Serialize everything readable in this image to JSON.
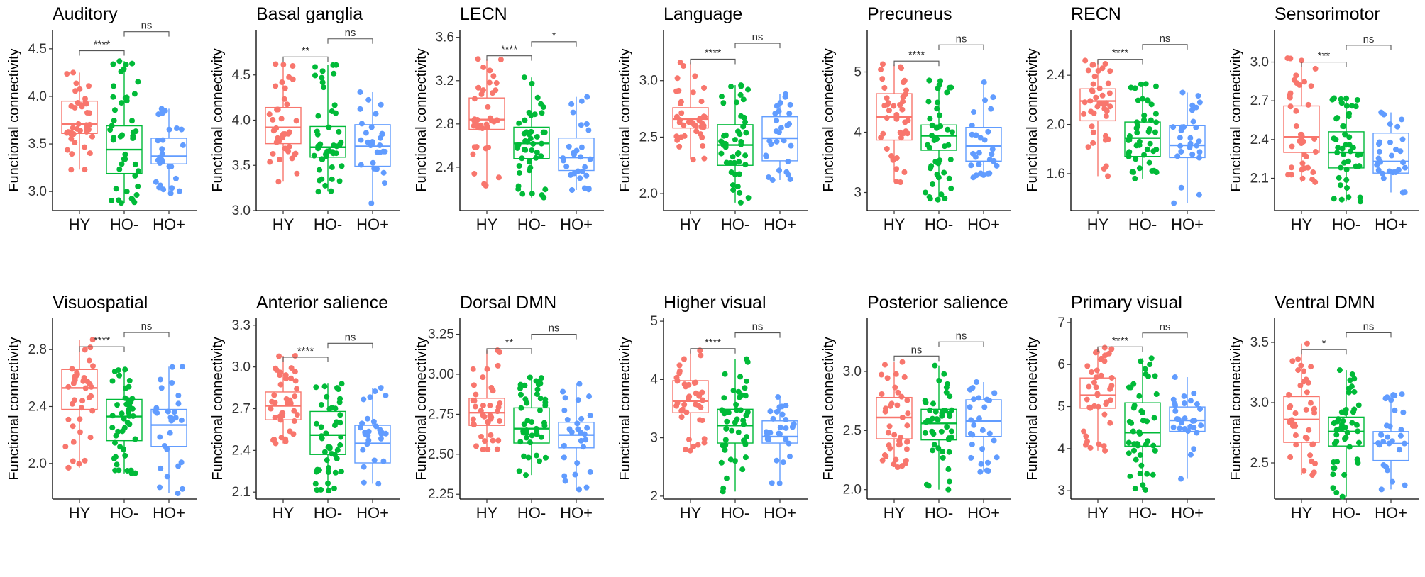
{
  "chart_data": [
    {
      "type": "box",
      "title": "Auditory",
      "ylabel": "Functional connectivity",
      "categories": [
        "HY",
        "HO-",
        "HO+"
      ],
      "ylim": [
        2.8,
        4.7
      ],
      "yticks": [
        "3.0",
        "3.5",
        "4.0",
        "4.5"
      ],
      "boxes": [
        {
          "name": "HY",
          "whislo": 3.23,
          "q1": 3.61,
          "med": 3.71,
          "q3": 3.95,
          "whishi": 4.25
        },
        {
          "name": "HO-",
          "whislo": 2.88,
          "q1": 3.19,
          "med": 3.44,
          "q3": 3.69,
          "whishi": 4.37
        },
        {
          "name": "HO+",
          "whislo": 2.98,
          "q1": 3.29,
          "med": 3.37,
          "q3": 3.56,
          "whishi": 3.87
        }
      ],
      "comparisons": [
        {
          "label": "****",
          "from": "HY",
          "to": "HO-",
          "y": 4.48
        },
        {
          "label": "ns",
          "from": "HO-",
          "to": "HO+",
          "y": 4.68
        }
      ]
    },
    {
      "type": "box",
      "title": "Basal ganglia",
      "ylabel": "Functional connectivity",
      "categories": [
        "HY",
        "HO-",
        "HO+"
      ],
      "ylim": [
        3.0,
        5.0
      ],
      "yticks": [
        "3.0",
        "3.5",
        "4.0",
        "4.5"
      ],
      "boxes": [
        {
          "name": "HY",
          "whislo": 3.32,
          "q1": 3.74,
          "med": 3.92,
          "q3": 4.14,
          "whishi": 4.62
        },
        {
          "name": "HO-",
          "whislo": 3.21,
          "q1": 3.59,
          "med": 3.7,
          "q3": 3.93,
          "whishi": 4.61
        },
        {
          "name": "HO+",
          "whislo": 3.08,
          "q1": 3.49,
          "med": 3.71,
          "q3": 3.95,
          "whishi": 4.31
        }
      ],
      "comparisons": [
        {
          "label": "**",
          "from": "HY",
          "to": "HO-",
          "y": 4.7
        },
        {
          "label": "ns",
          "from": "HO-",
          "to": "HO+",
          "y": 4.9
        }
      ]
    },
    {
      "type": "box",
      "title": "LECN",
      "ylabel": "Functional connectivity",
      "categories": [
        "HY",
        "HO-",
        "HO+"
      ],
      "ylim": [
        2.0,
        3.67
      ],
      "yticks": [
        "2.4",
        "2.8",
        "3.2",
        "3.6"
      ],
      "boxes": [
        {
          "name": "HY",
          "whislo": 2.23,
          "q1": 2.75,
          "med": 2.84,
          "q3": 3.04,
          "whishi": 3.4
        },
        {
          "name": "HO-",
          "whislo": 2.12,
          "q1": 2.48,
          "med": 2.62,
          "q3": 2.77,
          "whishi": 3.23
        },
        {
          "name": "HO+",
          "whislo": 2.19,
          "q1": 2.37,
          "med": 2.49,
          "q3": 2.67,
          "whishi": 3.05
        }
      ],
      "comparisons": [
        {
          "label": "****",
          "from": "HY",
          "to": "HO-",
          "y": 3.43
        },
        {
          "label": "*",
          "from": "HO-",
          "to": "HO+",
          "y": 3.56
        }
      ]
    },
    {
      "type": "box",
      "title": "Language",
      "ylabel": "Functional connectivity",
      "categories": [
        "HY",
        "HO-",
        "HO+"
      ],
      "ylim": [
        1.85,
        3.45
      ],
      "yticks": [
        "2.0",
        "2.5",
        "3.0"
      ],
      "boxes": [
        {
          "name": "HY",
          "whislo": 2.3,
          "q1": 2.58,
          "med": 2.66,
          "q3": 2.76,
          "whishi": 3.16
        },
        {
          "name": "HO-",
          "whislo": 1.92,
          "q1": 2.25,
          "med": 2.43,
          "q3": 2.61,
          "whishi": 2.96
        },
        {
          "name": "HO+",
          "whislo": 2.12,
          "q1": 2.29,
          "med": 2.49,
          "q3": 2.68,
          "whishi": 2.88
        }
      ],
      "comparisons": [
        {
          "label": "****",
          "from": "HY",
          "to": "HO-",
          "y": 3.19
        },
        {
          "label": "ns",
          "from": "HO-",
          "to": "HO+",
          "y": 3.33
        }
      ]
    },
    {
      "type": "box",
      "title": "Precuneus",
      "ylabel": "Functional connectivity",
      "categories": [
        "HY",
        "HO-",
        "HO+"
      ],
      "ylim": [
        2.7,
        5.7
      ],
      "yticks": [
        "3",
        "4",
        "5"
      ],
      "boxes": [
        {
          "name": "HY",
          "whislo": 3.17,
          "q1": 3.87,
          "med": 4.25,
          "q3": 4.64,
          "whishi": 5.13
        },
        {
          "name": "HO-",
          "whislo": 2.88,
          "q1": 3.7,
          "med": 3.94,
          "q3": 4.12,
          "whishi": 4.86
        },
        {
          "name": "HO+",
          "whislo": 3.25,
          "q1": 3.52,
          "med": 3.77,
          "q3": 4.08,
          "whishi": 4.83
        }
      ],
      "comparisons": [
        {
          "label": "****",
          "from": "HY",
          "to": "HO-",
          "y": 5.18
        },
        {
          "label": "ns",
          "from": "HO-",
          "to": "HO+",
          "y": 5.45
        }
      ]
    },
    {
      "type": "box",
      "title": "RECN",
      "ylabel": "Functional connectivity",
      "categories": [
        "HY",
        "HO-",
        "HO+"
      ],
      "ylim": [
        1.3,
        2.77
      ],
      "yticks": [
        "1.6",
        "2.0",
        "2.4"
      ],
      "boxes": [
        {
          "name": "HY",
          "whislo": 1.58,
          "q1": 2.03,
          "med": 2.19,
          "q3": 2.29,
          "whishi": 2.52
        },
        {
          "name": "HO-",
          "whislo": 1.56,
          "q1": 1.74,
          "med": 1.89,
          "q3": 2.02,
          "whishi": 2.33
        },
        {
          "name": "HO+",
          "whislo": 1.36,
          "q1": 1.73,
          "med": 1.83,
          "q3": 1.99,
          "whishi": 2.26
        }
      ],
      "comparisons": [
        {
          "label": "****",
          "from": "HY",
          "to": "HO-",
          "y": 2.53
        },
        {
          "label": "ns",
          "from": "HO-",
          "to": "HO+",
          "y": 2.65
        }
      ]
    },
    {
      "type": "box",
      "title": "Sensorimotor",
      "ylabel": "Functional connectivity",
      "categories": [
        "HY",
        "HO-",
        "HO+"
      ],
      "ylim": [
        1.85,
        3.25
      ],
      "yticks": [
        "2.1",
        "2.4",
        "2.7",
        "3.0"
      ],
      "boxes": [
        {
          "name": "HY",
          "whislo": 2.07,
          "q1": 2.3,
          "med": 2.42,
          "q3": 2.66,
          "whishi": 3.03
        },
        {
          "name": "HO-",
          "whislo": 1.92,
          "q1": 2.18,
          "med": 2.3,
          "q3": 2.46,
          "whishi": 2.72
        },
        {
          "name": "HO+",
          "whislo": 1.99,
          "q1": 2.14,
          "med": 2.23,
          "q3": 2.45,
          "whishi": 2.61
        }
      ],
      "comparisons": [
        {
          "label": "***",
          "from": "HY",
          "to": "HO-",
          "y": 3.0
        },
        {
          "label": "ns",
          "from": "HO-",
          "to": "HO+",
          "y": 3.13
        }
      ]
    },
    {
      "type": "box",
      "title": "Visuospatial",
      "ylabel": "Functional connectivity",
      "categories": [
        "HY",
        "HO-",
        "HO+"
      ],
      "ylim": [
        1.75,
        3.02
      ],
      "yticks": [
        "2.0",
        "2.4",
        "2.8"
      ],
      "boxes": [
        {
          "name": "HY",
          "whislo": 1.97,
          "q1": 2.38,
          "med": 2.53,
          "q3": 2.66,
          "whishi": 2.87
        },
        {
          "name": "HO-",
          "whislo": 1.93,
          "q1": 2.16,
          "med": 2.33,
          "q3": 2.45,
          "whishi": 2.66
        },
        {
          "name": "HO+",
          "whislo": 1.79,
          "q1": 2.12,
          "med": 2.27,
          "q3": 2.38,
          "whishi": 2.68
        }
      ],
      "comparisons": [
        {
          "label": "****",
          "from": "HY",
          "to": "HO-",
          "y": 2.82
        },
        {
          "label": "ns",
          "from": "HO-",
          "to": "HO+",
          "y": 2.92
        }
      ]
    },
    {
      "type": "box",
      "title": "Anterior salience",
      "ylabel": "Functional connectivity",
      "categories": [
        "HY",
        "HO-",
        "HO+"
      ],
      "ylim": [
        2.05,
        3.35
      ],
      "yticks": [
        "2.1",
        "2.4",
        "2.7",
        "3.0",
        "3.3"
      ],
      "boxes": [
        {
          "name": "HY",
          "whislo": 2.45,
          "q1": 2.62,
          "med": 2.72,
          "q3": 2.82,
          "whishi": 3.08
        },
        {
          "name": "HO-",
          "whislo": 2.11,
          "q1": 2.37,
          "med": 2.51,
          "q3": 2.68,
          "whishi": 2.88
        },
        {
          "name": "HO+",
          "whislo": 2.16,
          "q1": 2.31,
          "med": 2.45,
          "q3": 2.58,
          "whishi": 2.85
        }
      ],
      "comparisons": [
        {
          "label": "****",
          "from": "HY",
          "to": "HO-",
          "y": 3.07
        },
        {
          "label": "ns",
          "from": "HO-",
          "to": "HO+",
          "y": 3.17
        }
      ]
    },
    {
      "type": "box",
      "title": "Dorsal DMN",
      "ylabel": "Functional connectivity",
      "categories": [
        "HY",
        "HO-",
        "HO+"
      ],
      "ylim": [
        2.22,
        3.35
      ],
      "yticks": [
        "2.25",
        "2.50",
        "2.75",
        "3.00",
        "3.25"
      ],
      "boxes": [
        {
          "name": "HY",
          "whislo": 2.53,
          "q1": 2.68,
          "med": 2.76,
          "q3": 2.85,
          "whishi": 3.15
        },
        {
          "name": "HO-",
          "whislo": 2.37,
          "q1": 2.57,
          "med": 2.66,
          "q3": 2.79,
          "whishi": 2.98
        },
        {
          "name": "HO+",
          "whislo": 2.28,
          "q1": 2.54,
          "med": 2.62,
          "q3": 2.7,
          "whishi": 2.94
        }
      ],
      "comparisons": [
        {
          "label": "**",
          "from": "HY",
          "to": "HO-",
          "y": 3.16
        },
        {
          "label": "ns",
          "from": "HO-",
          "to": "HO+",
          "y": 3.25
        }
      ]
    },
    {
      "type": "box",
      "title": "Higher visual",
      "ylabel": "Functional connectivity",
      "categories": [
        "HY",
        "HO-",
        "HO+"
      ],
      "ylim": [
        1.95,
        5.05
      ],
      "yticks": [
        "2",
        "3",
        "4",
        "5"
      ],
      "boxes": [
        {
          "name": "HY",
          "whislo": 2.78,
          "q1": 3.43,
          "med": 3.63,
          "q3": 3.98,
          "whishi": 4.5
        },
        {
          "name": "HO-",
          "whislo": 2.08,
          "q1": 2.91,
          "med": 3.21,
          "q3": 3.49,
          "whishi": 4.35
        },
        {
          "name": "HO+",
          "whislo": 2.22,
          "q1": 2.91,
          "med": 3.02,
          "q3": 3.29,
          "whishi": 3.7
        }
      ],
      "comparisons": [
        {
          "label": "****",
          "from": "HY",
          "to": "HO-",
          "y": 4.53
        },
        {
          "label": "ns",
          "from": "HO-",
          "to": "HO+",
          "y": 4.8
        }
      ]
    },
    {
      "type": "box",
      "title": "Posterior salience",
      "ylabel": "Functional connectivity",
      "categories": [
        "HY",
        "HO-",
        "HO+"
      ],
      "ylim": [
        1.92,
        3.45
      ],
      "yticks": [
        "2.0",
        "2.5",
        "3.0"
      ],
      "boxes": [
        {
          "name": "HY",
          "whislo": 2.19,
          "q1": 2.43,
          "med": 2.61,
          "q3": 2.78,
          "whishi": 3.08
        },
        {
          "name": "HO-",
          "whislo": 2.0,
          "q1": 2.42,
          "med": 2.56,
          "q3": 2.68,
          "whishi": 3.05
        },
        {
          "name": "HO+",
          "whislo": 2.15,
          "q1": 2.45,
          "med": 2.58,
          "q3": 2.76,
          "whishi": 2.91
        }
      ],
      "comparisons": [
        {
          "label": "ns",
          "from": "HY",
          "to": "HO-",
          "y": 3.13
        },
        {
          "label": "ns",
          "from": "HO-",
          "to": "HO+",
          "y": 3.25
        }
      ]
    },
    {
      "type": "box",
      "title": "Primary visual",
      "ylabel": "Functional connectivity",
      "categories": [
        "HY",
        "HO-",
        "HO+"
      ],
      "ylim": [
        2.8,
        7.1
      ],
      "yticks": [
        "3",
        "4",
        "5",
        "6",
        "7"
      ],
      "boxes": [
        {
          "name": "HY",
          "whislo": 3.95,
          "q1": 4.96,
          "med": 5.27,
          "q3": 5.68,
          "whishi": 6.4
        },
        {
          "name": "HO-",
          "whislo": 3.02,
          "q1": 4.06,
          "med": 4.38,
          "q3": 5.09,
          "whishi": 6.15
        },
        {
          "name": "HO+",
          "whislo": 3.28,
          "q1": 4.41,
          "med": 4.67,
          "q3": 4.99,
          "whishi": 5.7
        }
      ],
      "comparisons": [
        {
          "label": "****",
          "from": "HY",
          "to": "HO-",
          "y": 6.42
        },
        {
          "label": "ns",
          "from": "HO-",
          "to": "HO+",
          "y": 6.75
        }
      ]
    },
    {
      "type": "box",
      "title": "Ventral DMN",
      "ylabel": "Functional connectivity",
      "categories": [
        "HY",
        "HO-",
        "HO+"
      ],
      "ylim": [
        2.2,
        3.7
      ],
      "yticks": [
        "2.5",
        "3.0",
        "3.5"
      ],
      "boxes": [
        {
          "name": "HY",
          "whislo": 2.4,
          "q1": 2.67,
          "med": 2.86,
          "q3": 3.05,
          "whishi": 3.49
        },
        {
          "name": "HO-",
          "whislo": 2.22,
          "q1": 2.64,
          "med": 2.76,
          "q3": 2.88,
          "whishi": 3.27
        },
        {
          "name": "HO+",
          "whislo": 2.28,
          "q1": 2.52,
          "med": 2.66,
          "q3": 2.76,
          "whishi": 3.07
        }
      ],
      "comparisons": [
        {
          "label": "*",
          "from": "HY",
          "to": "HO-",
          "y": 3.44
        },
        {
          "label": "ns",
          "from": "HO-",
          "to": "HO+",
          "y": 3.58
        }
      ]
    }
  ],
  "colors": {
    "HY": "#F8766D",
    "HO-": "#00BA38",
    "HO+": "#619CFF",
    "axis": "#000000",
    "tick_text": "#333333"
  }
}
